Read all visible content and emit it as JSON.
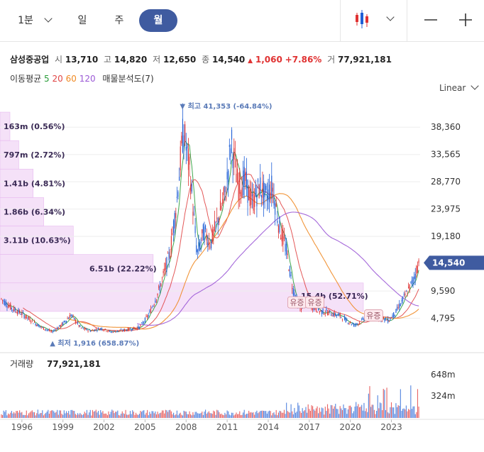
{
  "toolbar": {
    "tabs": [
      {
        "label": "1분",
        "active": false
      },
      {
        "label": "일",
        "active": false
      },
      {
        "label": "주",
        "active": false
      },
      {
        "label": "월",
        "active": true
      }
    ],
    "chart_type_icon": "candlestick-icon",
    "zoom_out_icon": "minus-icon",
    "zoom_in_icon": "plus-icon"
  },
  "quote": {
    "name": "삼성중공업",
    "open_label": "시",
    "open": "13,710",
    "high_label": "고",
    "high": "14,820",
    "low_label": "저",
    "low": "12,650",
    "close_label": "종",
    "close": "14,540",
    "change": "1,060",
    "change_pct": "+7.86%",
    "volume_label": "거",
    "volume": "77,921,181"
  },
  "moving_average": {
    "label": "이동평균",
    "periods": [
      {
        "value": "5",
        "color": "#2a9d3a"
      },
      {
        "value": "20",
        "color": "#e04545"
      },
      {
        "value": "60",
        "color": "#f08a24"
      },
      {
        "value": "120",
        "color": "#9b59d6"
      }
    ],
    "profile_label": "매물분석도(7)"
  },
  "scale_label": "Linear",
  "colors": {
    "up": "#e03232",
    "down": "#1f5fd6",
    "price_tag": "#3f5ba0",
    "profile": "#f3dcf7"
  },
  "chart_data": {
    "type": "candlestick",
    "x_ticks": [
      "1996",
      "1999",
      "2002",
      "2005",
      "2008",
      "2011",
      "2014",
      "2017",
      "2020",
      "2023"
    ],
    "y_ticks": [
      "38,360",
      "33,565",
      "28,770",
      "23,975",
      "19,180",
      "14,540",
      "9,590",
      "4,795"
    ],
    "y_range": [
      1500,
      42000
    ],
    "current_price": "14,540",
    "max_marker": "최고 41,353 (-64.84%)",
    "min_marker": "최저 1,916 (658.87%)",
    "volume_title": "거래량",
    "volume_value": "77,921,181",
    "volume_ticks": [
      "648m",
      "324m"
    ],
    "volume_profile": [
      {
        "label": "163m (0.56%)",
        "low": 36000,
        "high": 41000,
        "ratio": 0.56
      },
      {
        "label": "797m (2.72%)",
        "low": 31000,
        "high": 36000,
        "ratio": 2.72
      },
      {
        "label": "1.41b (4.81%)",
        "low": 26000,
        "high": 31000,
        "ratio": 4.81
      },
      {
        "label": "1.86b (6.34%)",
        "low": 21000,
        "high": 26000,
        "ratio": 6.34
      },
      {
        "label": "3.11b (10.63%)",
        "low": 16000,
        "high": 21000,
        "ratio": 10.63
      },
      {
        "label": "6.51b (22.22%)",
        "low": 11000,
        "high": 16000,
        "ratio": 22.22
      },
      {
        "label": "15.4b (52.71%)",
        "low": 6000,
        "high": 11000,
        "ratio": 52.71
      }
    ],
    "events": [
      {
        "label": "유증",
        "year": 2016.1,
        "price": 5600
      },
      {
        "label": "유증",
        "year": 2017.4,
        "price": 5600
      },
      {
        "label": "유증",
        "year": 2021.7,
        "price": 3300
      }
    ],
    "price_path": [
      [
        1994.5,
        8200
      ],
      [
        1995.3,
        6500
      ],
      [
        1996.0,
        5600
      ],
      [
        1996.8,
        4200
      ],
      [
        1997.5,
        3100
      ],
      [
        1998.2,
        2400
      ],
      [
        1998.9,
        3600
      ],
      [
        1999.6,
        5400
      ],
      [
        2000.3,
        3100
      ],
      [
        2001.0,
        2600
      ],
      [
        2001.8,
        3000
      ],
      [
        2002.5,
        2400
      ],
      [
        2003.2,
        2600
      ],
      [
        2003.9,
        2900
      ],
      [
        2004.6,
        3200
      ],
      [
        2005.3,
        5500
      ],
      [
        2006.0,
        9600
      ],
      [
        2006.8,
        16000
      ],
      [
        2007.3,
        25000
      ],
      [
        2007.8,
        38000
      ],
      [
        2008.3,
        30000
      ],
      [
        2008.8,
        16000
      ],
      [
        2009.3,
        20000
      ],
      [
        2009.8,
        18000
      ],
      [
        2010.3,
        22000
      ],
      [
        2010.9,
        27000
      ],
      [
        2011.3,
        36000
      ],
      [
        2011.8,
        28000
      ],
      [
        2012.3,
        29000
      ],
      [
        2012.8,
        25000
      ],
      [
        2013.4,
        28000
      ],
      [
        2013.8,
        26000
      ],
      [
        2014.3,
        28000
      ],
      [
        2014.8,
        21000
      ],
      [
        2015.3,
        17000
      ],
      [
        2015.8,
        10000
      ],
      [
        2016.3,
        6500
      ],
      [
        2016.8,
        7500
      ],
      [
        2017.3,
        6800
      ],
      [
        2017.8,
        6000
      ],
      [
        2018.3,
        5900
      ],
      [
        2018.8,
        5500
      ],
      [
        2019.3,
        5200
      ],
      [
        2019.8,
        4300
      ],
      [
        2020.3,
        3600
      ],
      [
        2020.8,
        4200
      ],
      [
        2021.3,
        5600
      ],
      [
        2021.8,
        5200
      ],
      [
        2022.3,
        4800
      ],
      [
        2022.8,
        4400
      ],
      [
        2023.3,
        5800
      ],
      [
        2023.8,
        7900
      ],
      [
        2024.2,
        9600
      ],
      [
        2024.6,
        11500
      ],
      [
        2025.0,
        14540
      ]
    ]
  }
}
